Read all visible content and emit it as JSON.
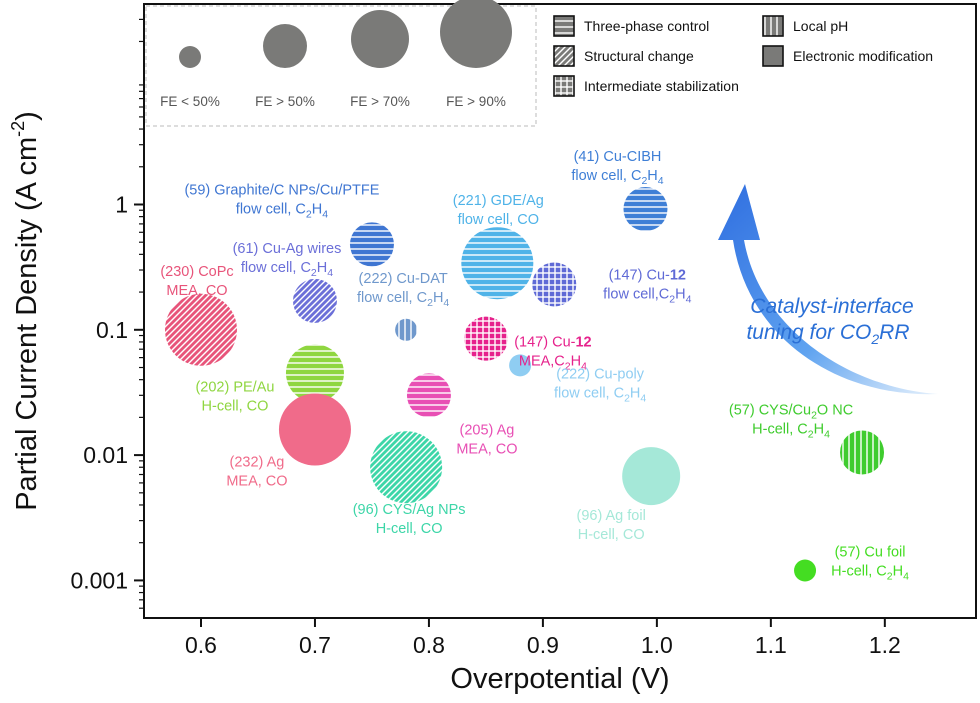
{
  "chart_data": {
    "type": "scatter",
    "xlabel": "Overpotential (V)",
    "ylabel": "Partial Current Density (A cm",
    "ylabel_sup": "-2",
    "ylabel_end": ")",
    "xlim": [
      0.55,
      1.28
    ],
    "ylim_log10": [
      -3.3,
      1.6
    ],
    "yscale": "log",
    "x_ticks": [
      0.6,
      0.7,
      0.8,
      0.9,
      1.0,
      1.1,
      1.2
    ],
    "x_tick_labels": [
      "0.6",
      "0.7",
      "0.8",
      "0.9",
      "1.0",
      "1.1",
      "1.2"
    ],
    "y_ticks": [
      0.001,
      0.01,
      0.1,
      1
    ],
    "y_tick_labels": [
      "0.001",
      "0.01",
      "0.1",
      "1"
    ],
    "grid": false,
    "size_legend": [
      {
        "label": "FE < 50%",
        "fe_class": 1
      },
      {
        "label": "FE > 50%",
        "fe_class": 2
      },
      {
        "label": "FE > 70%",
        "fe_class": 3
      },
      {
        "label": "FE > 90%",
        "fe_class": 4
      }
    ],
    "pattern_legend": [
      {
        "label": "Three-phase control",
        "pattern": "horizontal"
      },
      {
        "label": "Structural change",
        "pattern": "diagonal"
      },
      {
        "label": "Intermediate stabilization",
        "pattern": "grid"
      },
      {
        "label": "Local pH",
        "pattern": "vertical"
      },
      {
        "label": "Electronic modification",
        "pattern": "solid"
      }
    ],
    "annotation": {
      "line1": "Catalyst-interface",
      "line2a": "tuning for CO",
      "line2sub": "2",
      "line2b": "RR"
    },
    "points": [
      {
        "x": 0.6,
        "y": 0.1,
        "fe_class": 4,
        "pattern": "diagonal",
        "color": "#e8547a",
        "label": [
          [
            [
              "(230) CoPc",
              ""
            ]
          ],
          [
            [
              "MEA, CO",
              ""
            ]
          ]
        ]
      },
      {
        "x": 0.7,
        "y": 0.17,
        "fe_class": 2,
        "pattern": "diagonal",
        "color": "#6b6fd8",
        "label": [
          [
            [
              "(61) Cu-Ag wires",
              ""
            ]
          ],
          [
            [
              "flow cell, C",
              ""
            ],
            [
              "2",
              "sub"
            ],
            [
              "H",
              ""
            ],
            [
              "4",
              "sub"
            ]
          ]
        ]
      },
      {
        "x": 0.7,
        "y": 0.045,
        "fe_class": 3,
        "pattern": "horizontal",
        "color": "#8fd640",
        "label": [
          [
            [
              "(202) PE/Au",
              ""
            ]
          ],
          [
            [
              "H-cell, CO",
              ""
            ]
          ]
        ]
      },
      {
        "x": 0.7,
        "y": 0.016,
        "fe_class": 4,
        "pattern": "solid",
        "color": "#f06b8a",
        "label": [
          [
            [
              "(232) Ag",
              ""
            ]
          ],
          [
            [
              "MEA, CO",
              ""
            ]
          ]
        ]
      },
      {
        "x": 0.75,
        "y": 0.48,
        "fe_class": 2,
        "pattern": "horizontal",
        "color": "#3f76d2",
        "label": [
          [
            [
              "(59) Graphite/C NPs/Cu/PTFE",
              ""
            ]
          ],
          [
            [
              "flow cell, C",
              ""
            ],
            [
              "2",
              "sub"
            ],
            [
              "H",
              ""
            ],
            [
              "4",
              "sub"
            ]
          ]
        ]
      },
      {
        "x": 0.78,
        "y": 0.1,
        "fe_class": 1,
        "pattern": "vertical",
        "color": "#6f98cc",
        "label": [
          [
            [
              "(222) Cu-DAT",
              ""
            ]
          ],
          [
            [
              "flow cell, C",
              ""
            ],
            [
              "2",
              "sub"
            ],
            [
              "H",
              ""
            ],
            [
              "4",
              "sub"
            ]
          ]
        ]
      },
      {
        "x": 0.78,
        "y": 0.008,
        "fe_class": 4,
        "pattern": "diagonal",
        "color": "#3dd6a8",
        "label": [
          [
            [
              "(96) CYS/Ag NPs",
              ""
            ]
          ],
          [
            [
              "H-cell, CO",
              ""
            ]
          ]
        ]
      },
      {
        "x": 0.8,
        "y": 0.03,
        "fe_class": 2,
        "pattern": "horizontal",
        "color": "#e84fb4",
        "label": [
          [
            [
              "(205) Ag",
              ""
            ]
          ],
          [
            [
              "MEA, CO",
              ""
            ]
          ]
        ]
      },
      {
        "x": 0.85,
        "y": 0.085,
        "fe_class": 2,
        "pattern": "grid",
        "color": "#e6228c",
        "label": [
          [
            [
              "(147) Cu-",
              ""
            ],
            [
              "12",
              "bold"
            ]
          ],
          [
            [
              "MEA,C",
              ""
            ],
            [
              "2",
              "sub"
            ],
            [
              "H",
              ""
            ],
            [
              "4",
              "sub"
            ]
          ]
        ]
      },
      {
        "x": 0.86,
        "y": 0.34,
        "fe_class": 4,
        "pattern": "horizontal",
        "color": "#4fb3e8",
        "label": [
          [
            [
              "(221) GDE/Ag",
              ""
            ]
          ],
          [
            [
              "flow cell, CO",
              ""
            ]
          ]
        ]
      },
      {
        "x": 0.88,
        "y": 0.052,
        "fe_class": 1,
        "pattern": "solid",
        "color": "#8fcdf2",
        "label": [
          [
            [
              "(222) Cu-poly",
              ""
            ]
          ],
          [
            [
              "flow cell, C",
              ""
            ],
            [
              "2",
              "sub"
            ],
            [
              "H",
              ""
            ],
            [
              "4",
              "sub"
            ]
          ]
        ]
      },
      {
        "x": 0.91,
        "y": 0.23,
        "fe_class": 2,
        "pattern": "grid",
        "color": "#5f6ad6",
        "label": [
          [
            [
              "(147) Cu-",
              ""
            ],
            [
              "12",
              "bold"
            ]
          ],
          [
            [
              "flow cell,C",
              ""
            ],
            [
              "2",
              "sub"
            ],
            [
              "H",
              ""
            ],
            [
              "4",
              "sub"
            ]
          ]
        ]
      },
      {
        "x": 0.99,
        "y": 0.92,
        "fe_class": 2,
        "pattern": "horizontal",
        "color": "#3f7fd6",
        "label": [
          [
            [
              "(41) Cu-CIBH",
              ""
            ]
          ],
          [
            [
              "flow cell, C",
              ""
            ],
            [
              "2",
              "sub"
            ],
            [
              "H",
              ""
            ],
            [
              "4",
              "sub"
            ]
          ]
        ]
      },
      {
        "x": 0.995,
        "y": 0.0068,
        "fe_class": 3,
        "pattern": "solid",
        "color": "#a5e8d8",
        "label": [
          [
            [
              "(96) Ag foil",
              ""
            ]
          ],
          [
            [
              "H-cell, CO",
              ""
            ]
          ]
        ]
      },
      {
        "x": 1.18,
        "y": 0.0105,
        "fe_class": 2,
        "pattern": "vertical",
        "color": "#3fcc2e",
        "label": [
          [
            [
              "(57) CYS/Cu",
              ""
            ],
            [
              "2",
              "sub"
            ],
            [
              "O NC",
              ""
            ]
          ],
          [
            [
              "H-cell, C",
              ""
            ],
            [
              "2",
              "sub"
            ],
            [
              "H",
              ""
            ],
            [
              "4",
              "sub"
            ]
          ]
        ]
      },
      {
        "x": 1.13,
        "y": 0.0012,
        "fe_class": 1,
        "pattern": "solid",
        "color": "#44dd22",
        "label": [
          [
            [
              "(57) Cu foil",
              ""
            ]
          ],
          [
            [
              "H-cell, C",
              ""
            ],
            [
              "2",
              "sub"
            ],
            [
              "H",
              ""
            ],
            [
              "4",
              "sub"
            ]
          ]
        ]
      }
    ]
  }
}
